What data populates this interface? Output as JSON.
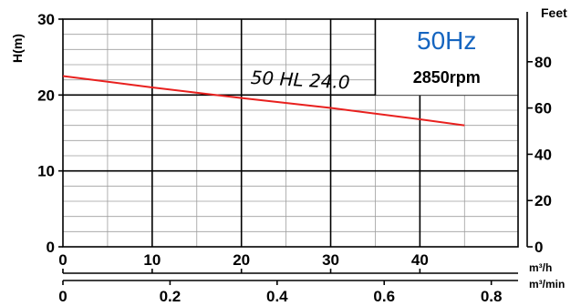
{
  "chart_data": {
    "type": "line",
    "ylabel": "H(m)",
    "y2label": "Feet",
    "x1_unit": "m³/h",
    "x2_unit": "m³/min",
    "xlim": [
      0,
      51
    ],
    "ylim": [
      0,
      30
    ],
    "x_ticks": [
      "0",
      "10",
      "20",
      "30",
      "40"
    ],
    "x_tick_values": [
      0,
      10,
      20,
      30,
      40
    ],
    "x2_ticks": [
      "0",
      "0.2",
      "0.4",
      "0.6",
      "0.8"
    ],
    "x2_tick_values": [
      0,
      0.2,
      0.4,
      0.6,
      0.8
    ],
    "y_ticks": [
      "0",
      "10",
      "20",
      "30"
    ],
    "y_tick_values": [
      0,
      10,
      20,
      30
    ],
    "y2_ticks": [
      "0",
      "20",
      "40",
      "60",
      "80"
    ],
    "y2_tick_values": [
      0,
      20,
      40,
      60,
      80
    ],
    "frequency_label": "50Hz",
    "frequency_color": "#1565c0",
    "rpm_label": "2850rpm",
    "grid": true,
    "series": [
      {
        "name": "50 HL 24.0",
        "color": "#e8201e",
        "x": [
          0,
          10,
          20,
          30,
          40,
          45
        ],
        "y": [
          22.5,
          21.0,
          19.6,
          18.3,
          16.8,
          16.0
        ]
      }
    ]
  }
}
